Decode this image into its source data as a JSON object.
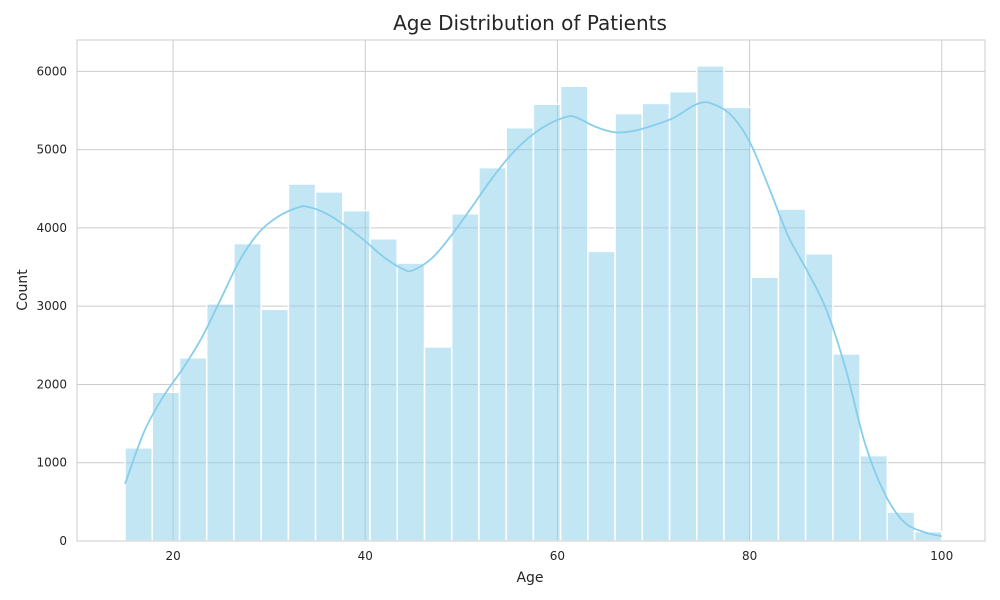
{
  "chart_data": {
    "type": "bar",
    "subtype": "histogram",
    "title": "Age Distribution of Patients",
    "xlabel": "Age",
    "ylabel": "Count",
    "xlim": [
      10,
      104.5
    ],
    "ylim": [
      0,
      6400
    ],
    "xticks": [
      20,
      40,
      60,
      80,
      100
    ],
    "yticks": [
      0,
      1000,
      2000,
      3000,
      4000,
      5000,
      6000
    ],
    "grid": true,
    "bar_color": "#87ceeb",
    "bar_opacity": 0.5,
    "kde_color": "#87ceeb",
    "bins": [
      {
        "x0": 15.0,
        "x1": 17.83,
        "count": 1190
      },
      {
        "x0": 17.83,
        "x1": 20.67,
        "count": 1900
      },
      {
        "x0": 20.67,
        "x1": 23.5,
        "count": 2340
      },
      {
        "x0": 23.5,
        "x1": 26.33,
        "count": 3030
      },
      {
        "x0": 26.33,
        "x1": 29.17,
        "count": 3800
      },
      {
        "x0": 29.17,
        "x1": 32.0,
        "count": 2960
      },
      {
        "x0": 32.0,
        "x1": 34.83,
        "count": 4560
      },
      {
        "x0": 34.83,
        "x1": 37.67,
        "count": 4460
      },
      {
        "x0": 37.67,
        "x1": 40.5,
        "count": 4220
      },
      {
        "x0": 40.5,
        "x1": 43.33,
        "count": 3860
      },
      {
        "x0": 43.33,
        "x1": 46.17,
        "count": 3550
      },
      {
        "x0": 46.17,
        "x1": 49.0,
        "count": 2480
      },
      {
        "x0": 49.0,
        "x1": 51.83,
        "count": 4180
      },
      {
        "x0": 51.83,
        "x1": 54.67,
        "count": 4770
      },
      {
        "x0": 54.67,
        "x1": 57.5,
        "count": 5280
      },
      {
        "x0": 57.5,
        "x1": 60.33,
        "count": 5580
      },
      {
        "x0": 60.33,
        "x1": 63.17,
        "count": 5810
      },
      {
        "x0": 63.17,
        "x1": 66.0,
        "count": 3700
      },
      {
        "x0": 66.0,
        "x1": 68.83,
        "count": 5460
      },
      {
        "x0": 68.83,
        "x1": 71.67,
        "count": 5590
      },
      {
        "x0": 71.67,
        "x1": 74.5,
        "count": 5740
      },
      {
        "x0": 74.5,
        "x1": 77.33,
        "count": 6070
      },
      {
        "x0": 77.33,
        "x1": 80.17,
        "count": 5540
      },
      {
        "x0": 80.17,
        "x1": 83.0,
        "count": 3370
      },
      {
        "x0": 83.0,
        "x1": 85.83,
        "count": 4240
      },
      {
        "x0": 85.83,
        "x1": 88.67,
        "count": 3670
      },
      {
        "x0": 88.67,
        "x1": 91.5,
        "count": 2390
      },
      {
        "x0": 91.5,
        "x1": 94.33,
        "count": 1090
      },
      {
        "x0": 94.33,
        "x1": 97.17,
        "count": 370
      },
      {
        "x0": 97.17,
        "x1": 100.0,
        "count": 120
      }
    ],
    "kde": {
      "x": [
        15,
        17,
        19,
        21,
        23,
        25,
        27,
        29,
        31,
        33,
        34,
        36,
        38,
        40,
        42,
        44,
        45,
        47,
        49,
        51,
        53,
        55,
        57,
        59,
        61,
        62,
        64,
        66,
        68,
        70,
        72,
        74,
        75,
        76,
        78,
        80,
        82,
        84,
        86,
        88,
        90,
        92,
        94,
        96,
        98,
        100
      ],
      "y": [
        730,
        1400,
        1850,
        2200,
        2600,
        3100,
        3600,
        3950,
        4150,
        4260,
        4270,
        4180,
        4020,
        3830,
        3620,
        3470,
        3460,
        3620,
        3910,
        4250,
        4600,
        4910,
        5150,
        5320,
        5420,
        5410,
        5290,
        5220,
        5240,
        5310,
        5400,
        5550,
        5600,
        5590,
        5450,
        5100,
        4520,
        3900,
        3450,
        2950,
        2200,
        1250,
        620,
        250,
        120,
        60
      ]
    }
  }
}
